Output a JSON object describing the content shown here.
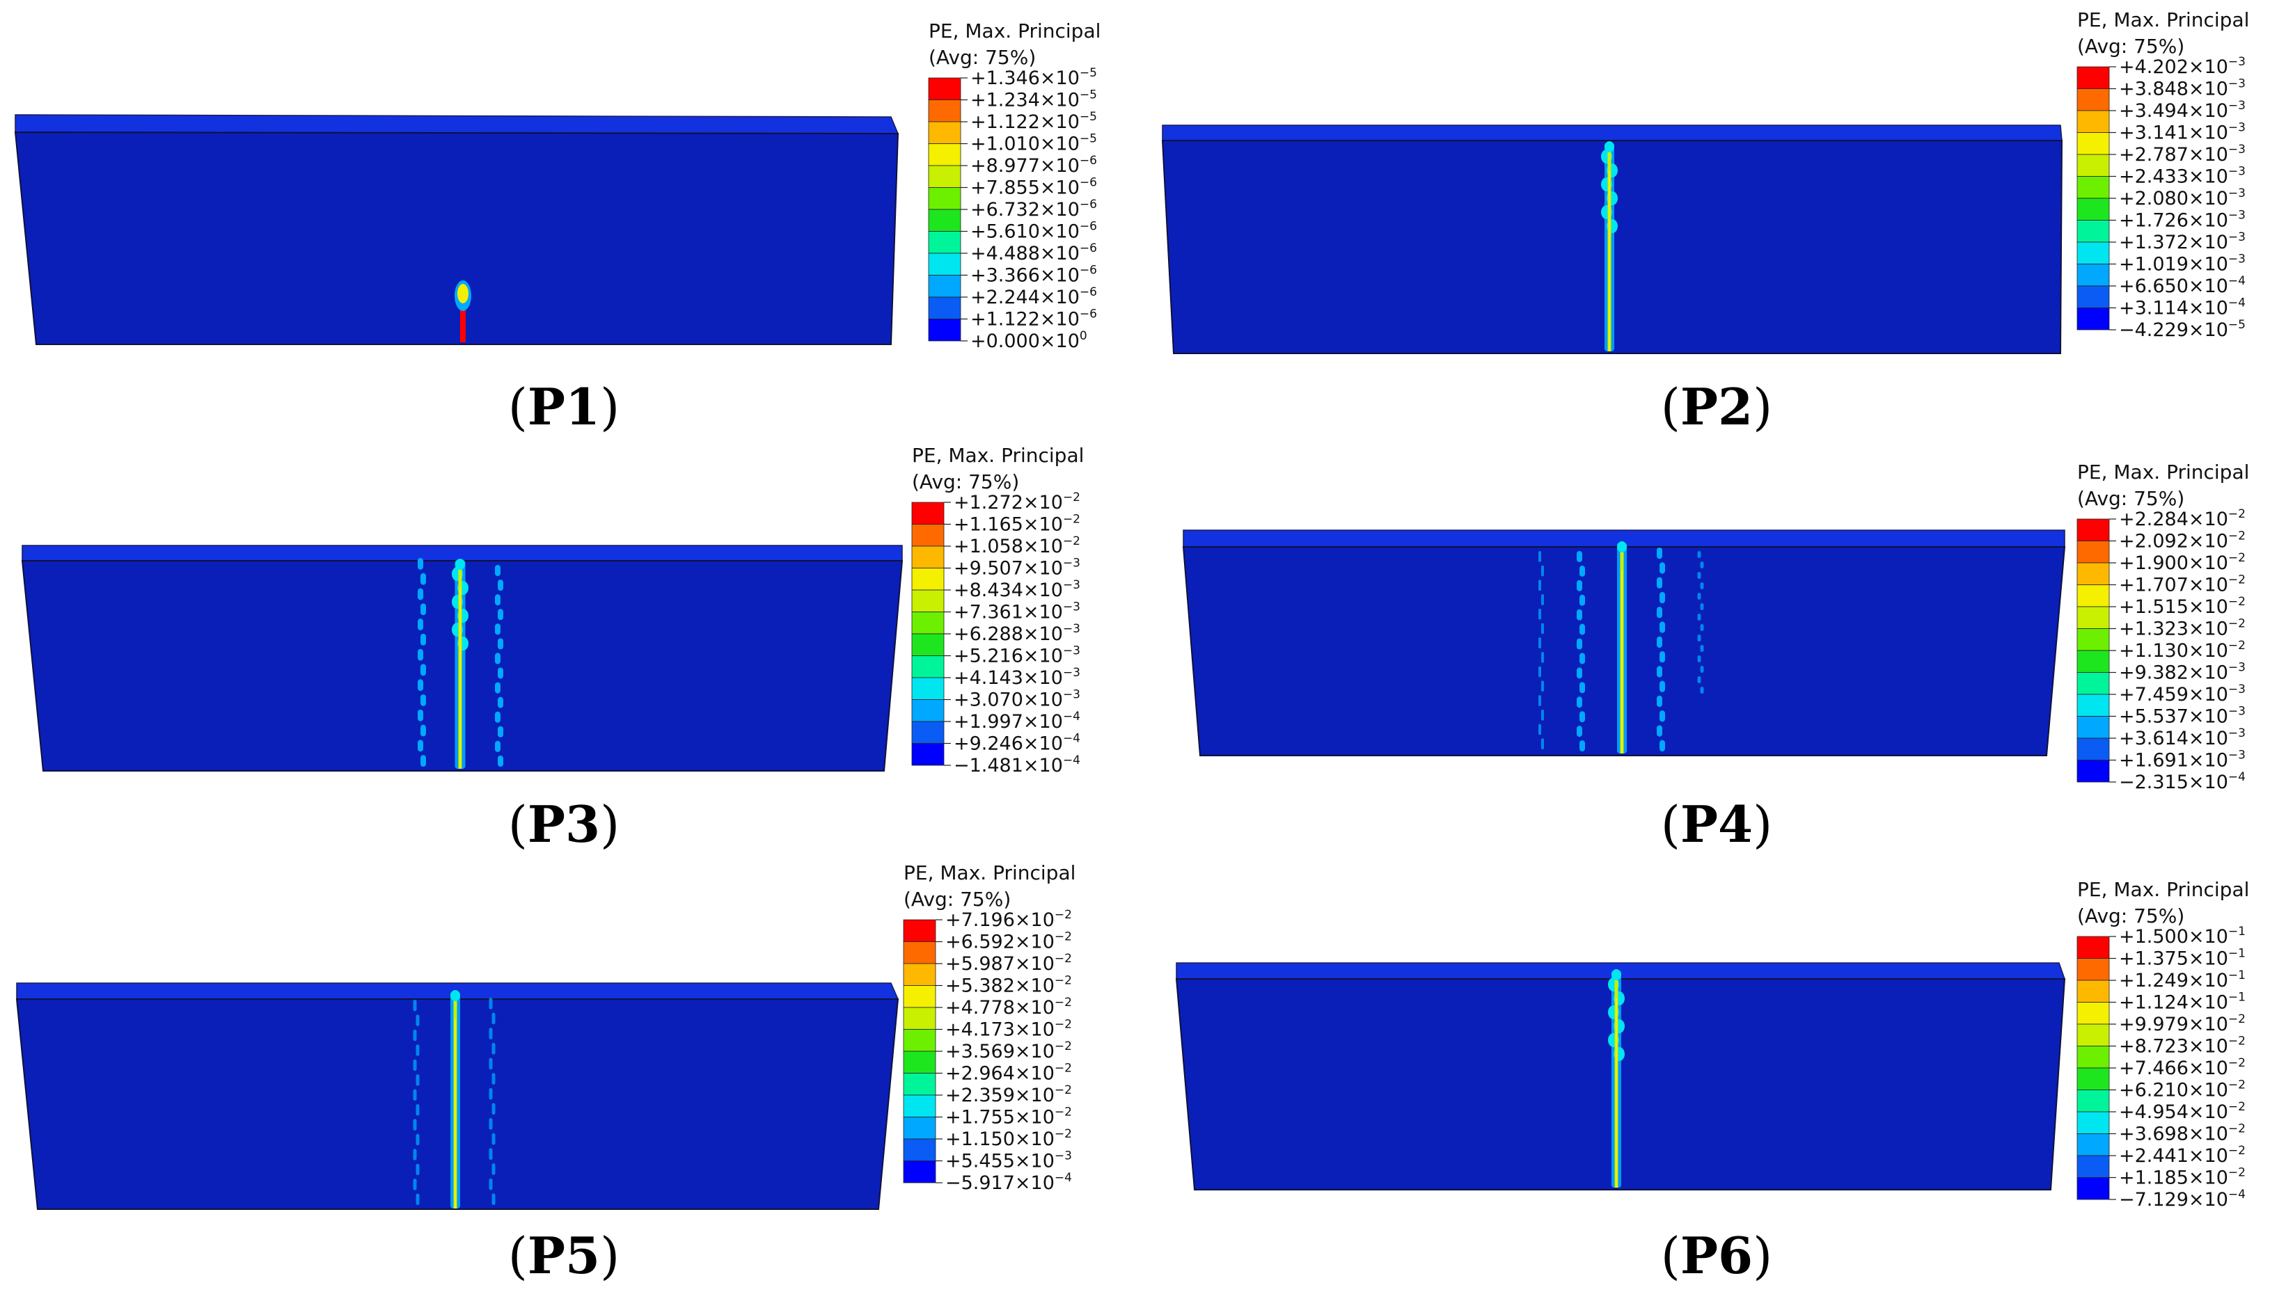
{
  "figure": {
    "legend_title_line1": "PE, Max. Principal",
    "legend_title_line2": "(Avg: 75%)",
    "colormap": [
      "#0000ff",
      "#0a5cf5",
      "#00a8ff",
      "#00e6f0",
      "#00f59a",
      "#1ee61e",
      "#6cf000",
      "#c8f000",
      "#f5f000",
      "#ffb800",
      "#ff6a00",
      "#ff0000"
    ],
    "body_color": "#0a1fb8",
    "top_color": "#1232e0",
    "panels": [
      {
        "id": "P1",
        "caption_open": "(",
        "caption_label": "P1",
        "caption_close": ")",
        "legend_values": [
          "+1.346×10",
          "+1.234×10",
          "+1.122×10",
          "+1.010×10",
          "+8.977×10",
          "+7.855×10",
          "+6.732×10",
          "+5.610×10",
          "+4.488×10",
          "+3.366×10",
          "+2.244×10",
          "+1.122×10",
          "+0.000×10"
        ],
        "legend_exponents": [
          "−5",
          "−5",
          "−5",
          "−5",
          "−6",
          "−6",
          "−6",
          "−6",
          "−6",
          "−6",
          "−6",
          "−6",
          "0"
        ],
        "crack_pattern": "single short crack at bottom center"
      },
      {
        "id": "P2",
        "caption_open": "(",
        "caption_label": "P2",
        "caption_close": ")",
        "legend_values": [
          "+4.202×10",
          "+3.848×10",
          "+3.494×10",
          "+3.141×10",
          "+2.787×10",
          "+2.433×10",
          "+2.080×10",
          "+1.726×10",
          "+1.372×10",
          "+1.019×10",
          "+6.650×10",
          "+3.114×10",
          "−4.229×10"
        ],
        "legend_exponents": [
          "−3",
          "−3",
          "−3",
          "−3",
          "−3",
          "−3",
          "−3",
          "−3",
          "−3",
          "−3",
          "−4",
          "−4",
          "−5"
        ],
        "crack_pattern": "single full-height crack"
      },
      {
        "id": "P3",
        "caption_open": "(",
        "caption_label": "P3",
        "caption_close": ")",
        "legend_values": [
          "+1.272×10",
          "+1.165×10",
          "+1.058×10",
          "+9.507×10",
          "+8.434×10",
          "+7.361×10",
          "+6.288×10",
          "+5.216×10",
          "+4.143×10",
          "+3.070×10",
          "+1.997×10",
          "+9.246×10",
          "−1.481×10"
        ],
        "legend_exponents": [
          "−2",
          "−2",
          "−2",
          "−3",
          "−3",
          "−3",
          "−3",
          "−3",
          "−3",
          "−3",
          "−4",
          "−4",
          "−4"
        ],
        "crack_pattern": "three cracks"
      },
      {
        "id": "P4",
        "caption_open": "(",
        "caption_label": "P4",
        "caption_close": ")",
        "legend_values": [
          "+2.284×10",
          "+2.092×10",
          "+1.900×10",
          "+1.707×10",
          "+1.515×10",
          "+1.323×10",
          "+1.130×10",
          "+9.382×10",
          "+7.459×10",
          "+5.537×10",
          "+3.614×10",
          "+1.691×10",
          "−2.315×10"
        ],
        "legend_exponents": [
          "−2",
          "−2",
          "−2",
          "−2",
          "−2",
          "−2",
          "−2",
          "−3",
          "−3",
          "−3",
          "−3",
          "−3",
          "−4"
        ],
        "crack_pattern": "five cracks"
      },
      {
        "id": "P5",
        "caption_open": "(",
        "caption_label": "P5",
        "caption_close": ")",
        "legend_values": [
          "+7.196×10",
          "+6.592×10",
          "+5.987×10",
          "+5.382×10",
          "+4.778×10",
          "+4.173×10",
          "+3.569×10",
          "+2.964×10",
          "+2.359×10",
          "+1.755×10",
          "+1.150×10",
          "+5.455×10",
          "−5.917×10"
        ],
        "legend_exponents": [
          "−2",
          "−2",
          "−2",
          "−2",
          "−2",
          "−2",
          "−2",
          "−2",
          "−2",
          "−2",
          "−2",
          "−3",
          "−4"
        ],
        "crack_pattern": "three cracks, center dominant"
      },
      {
        "id": "P6",
        "caption_open": "(",
        "caption_label": "P6",
        "caption_close": ")",
        "legend_values": [
          "+1.500×10",
          "+1.375×10",
          "+1.249×10",
          "+1.124×10",
          "+9.979×10",
          "+8.723×10",
          "+7.466×10",
          "+6.210×10",
          "+4.954×10",
          "+3.698×10",
          "+2.441×10",
          "+1.185×10",
          "−7.129×10"
        ],
        "legend_exponents": [
          "−1",
          "−1",
          "−1",
          "−1",
          "−2",
          "−2",
          "−2",
          "−2",
          "−2",
          "−2",
          "−2",
          "−2",
          "−4"
        ],
        "crack_pattern": "single localized crack"
      }
    ]
  }
}
